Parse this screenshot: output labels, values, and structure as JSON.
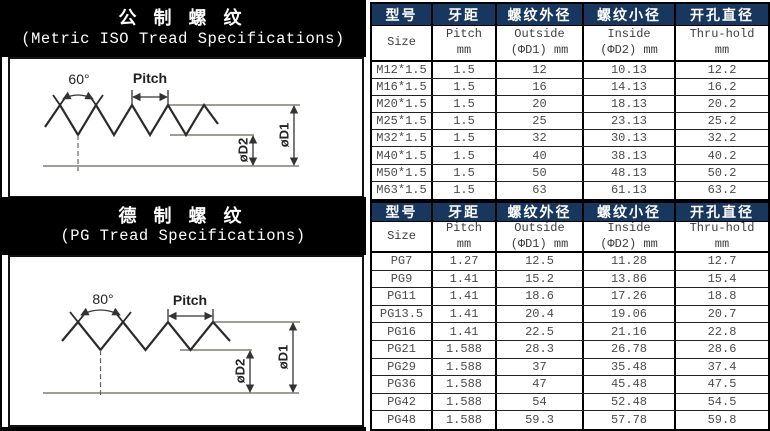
{
  "sections": [
    {
      "title_zh": "公 制 螺 纹",
      "title_en": "(Metric ISO Tread Specifications)",
      "diagram": {
        "angle": "60°",
        "pitch": "Pitch",
        "d1": "øD1",
        "d2": "øD2"
      }
    },
    {
      "title_zh": "德 制 螺 纹",
      "title_en": "(PG Tread Specifications)",
      "diagram": {
        "angle": "80°",
        "pitch": "Pitch",
        "d1": "øD1",
        "d2": "øD2"
      }
    }
  ],
  "table_headers": {
    "zh": [
      "型号",
      "牙距",
      "螺纹外径",
      "螺纹小径",
      "开孔直径"
    ],
    "en": [
      [
        "Size"
      ],
      [
        "Pitch",
        "mm"
      ],
      [
        "Outside",
        "(ΦD1) mm"
      ],
      [
        "Inside",
        "(ΦD2) mm"
      ],
      [
        "Thru-hold",
        "mm"
      ]
    ]
  },
  "tables": [
    {
      "name": "metric-iso-threads",
      "rows": [
        [
          "M12*1.5",
          "1.5",
          "12",
          "10.13",
          "12.2"
        ],
        [
          "M16*1.5",
          "1.5",
          "16",
          "14.13",
          "16.2"
        ],
        [
          "M20*1.5",
          "1.5",
          "20",
          "18.13",
          "20.2"
        ],
        [
          "M25*1.5",
          "1.5",
          "25",
          "23.13",
          "25.2"
        ],
        [
          "M32*1.5",
          "1.5",
          "32",
          "30.13",
          "32.2"
        ],
        [
          "M40*1.5",
          "1.5",
          "40",
          "38.13",
          "40.2"
        ],
        [
          "M50*1.5",
          "1.5",
          "50",
          "48.13",
          "50.2"
        ],
        [
          "M63*1.5",
          "1.5",
          "63",
          "61.13",
          "63.2"
        ]
      ]
    },
    {
      "name": "pg-threads",
      "rows": [
        [
          "PG7",
          "1.27",
          "12.5",
          "11.28",
          "12.7"
        ],
        [
          "PG9",
          "1.41",
          "15.2",
          "13.86",
          "15.4"
        ],
        [
          "PG11",
          "1.41",
          "18.6",
          "17.26",
          "18.8"
        ],
        [
          "PG13.5",
          "1.41",
          "20.4",
          "19.06",
          "20.7"
        ],
        [
          "PG16",
          "1.41",
          "22.5",
          "21.16",
          "22.8"
        ],
        [
          "PG21",
          "1.588",
          "28.3",
          "26.78",
          "28.6"
        ],
        [
          "PG29",
          "1.588",
          "37",
          "35.48",
          "37.4"
        ],
        [
          "PG36",
          "1.588",
          "47",
          "45.48",
          "47.5"
        ],
        [
          "PG42",
          "1.588",
          "54",
          "52.48",
          "54.5"
        ],
        [
          "PG48",
          "1.588",
          "59.3",
          "57.78",
          "59.8"
        ]
      ]
    }
  ],
  "colors": {
    "header_bg": "#17375E",
    "header_text": "#FFFFFF",
    "band_bg": "#000000",
    "data_text": "#4A4A4A"
  }
}
